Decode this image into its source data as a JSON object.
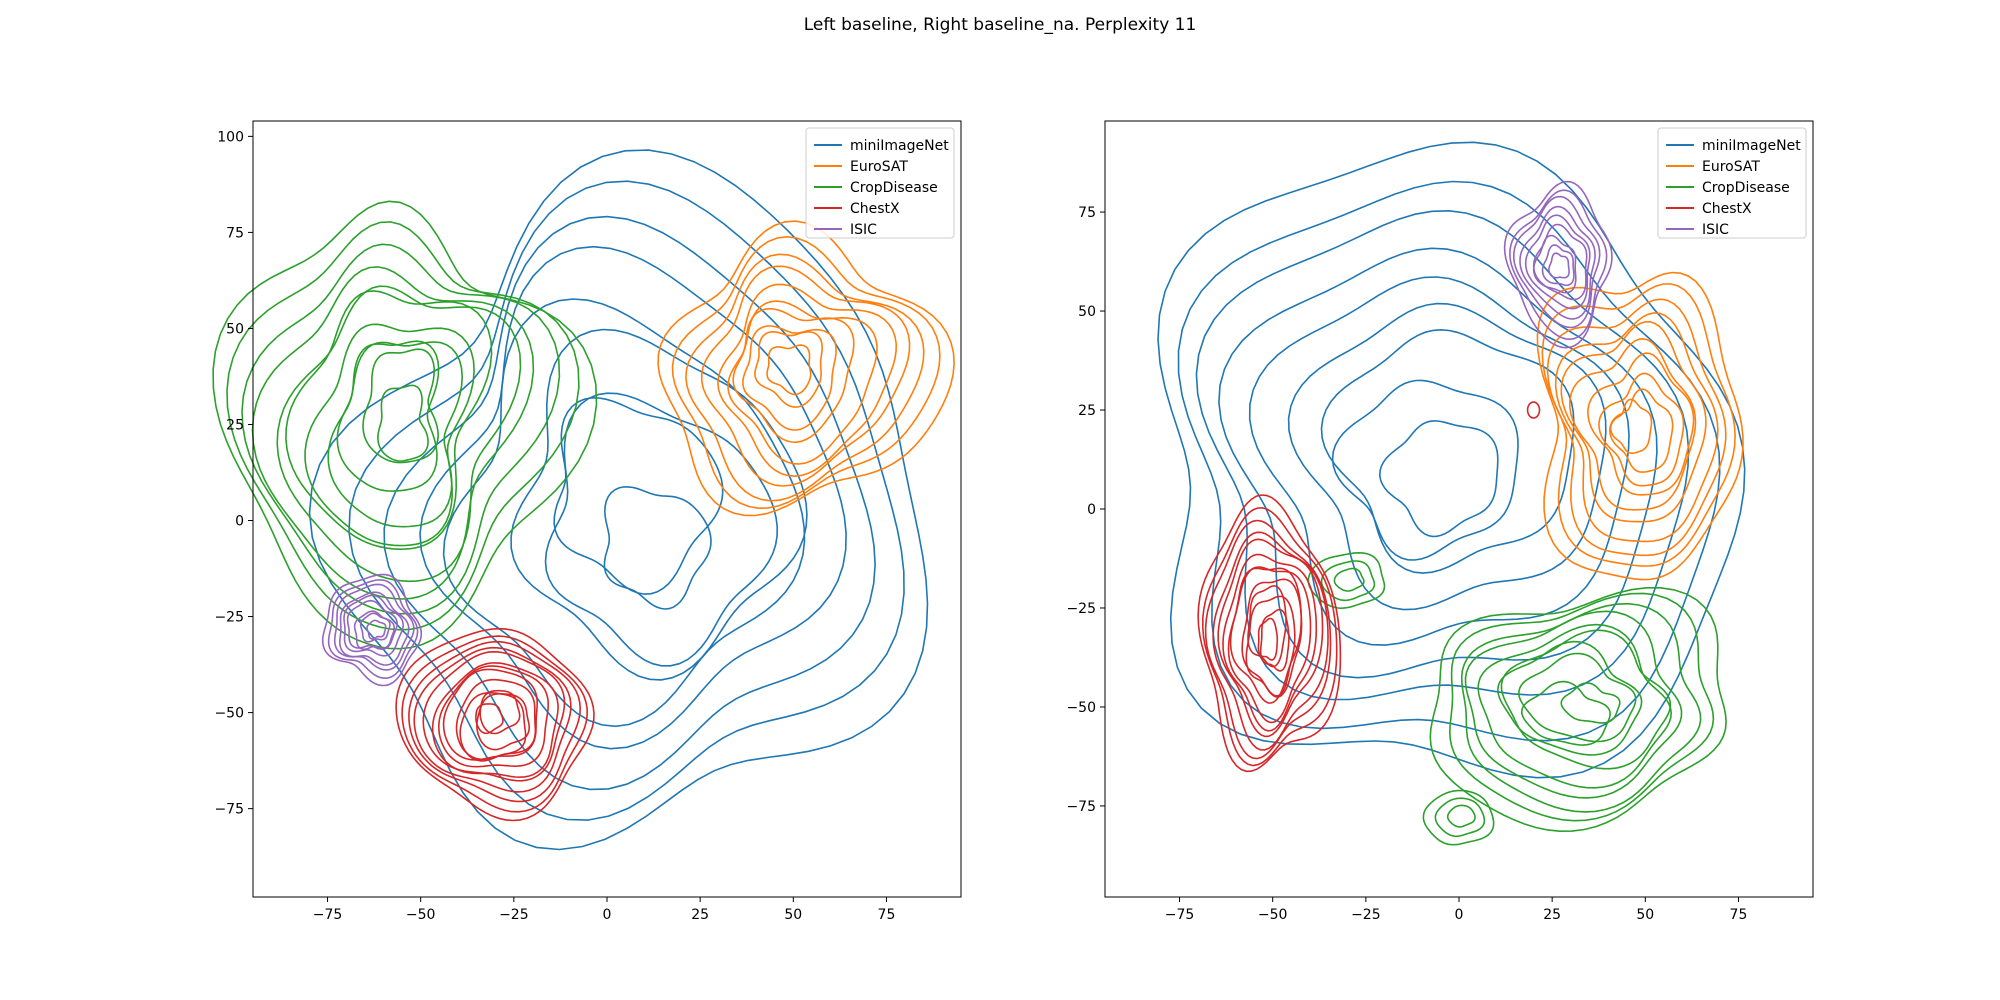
{
  "figure": {
    "title": "Left baseline, Right baseline_na. Perplexity 11"
  },
  "colors": {
    "miniImageNet": "#1f77b4",
    "EuroSAT": "#ff7f0e",
    "CropDisease": "#2ca02c",
    "ChestX": "#d62728",
    "ISIC": "#9467bd"
  },
  "chart_data": [
    {
      "type": "contour",
      "xlabel": "",
      "ylabel": "",
      "xlim": [
        -95,
        95
      ],
      "ylim": [
        -98,
        104
      ],
      "xticks": [
        -75,
        -50,
        -25,
        0,
        25,
        50,
        75
      ],
      "yticks": [
        -75,
        -50,
        -25,
        0,
        25,
        50,
        75,
        100
      ],
      "grid": false,
      "legend_position": "top-right",
      "legend": [
        "miniImageNet",
        "EuroSAT",
        "CropDisease",
        "ChestX",
        "ISIC"
      ],
      "series": [
        {
          "name": "miniImageNet",
          "clusters": [
            {
              "cx": 8,
              "cy": 2,
              "rx": 78,
              "ry": 82,
              "levels": 9,
              "wobble": 0.08,
              "seed": 1
            }
          ]
        },
        {
          "name": "EuroSAT",
          "clusters": [
            {
              "cx": 52,
              "cy": 38,
              "rx": 36,
              "ry": 35,
              "levels": 10,
              "wobble": 0.1,
              "seed": 2
            }
          ]
        },
        {
          "name": "CropDisease",
          "clusters": [
            {
              "cx": -57,
              "cy": 25,
              "rx": 42,
              "ry": 58,
              "levels": 11,
              "wobble": 0.1,
              "seed": 3
            }
          ]
        },
        {
          "name": "ChestX",
          "clusters": [
            {
              "cx": -30,
              "cy": -52,
              "rx": 25,
              "ry": 24,
              "levels": 13,
              "wobble": 0.06,
              "seed": 4
            }
          ]
        },
        {
          "name": "ISIC",
          "clusters": [
            {
              "cx": -63,
              "cy": -28,
              "rx": 13,
              "ry": 13,
              "levels": 9,
              "wobble": 0.08,
              "seed": 5
            }
          ]
        }
      ]
    },
    {
      "type": "contour",
      "xlabel": "",
      "ylabel": "",
      "xlim": [
        -95,
        95
      ],
      "ylim": [
        -98,
        98
      ],
      "xticks": [
        -75,
        -50,
        -25,
        0,
        25,
        50,
        75
      ],
      "yticks": [
        -75,
        -50,
        -25,
        0,
        25,
        50,
        75
      ],
      "grid": false,
      "legend_position": "top-right",
      "legend": [
        "miniImageNet",
        "EuroSAT",
        "CropDisease",
        "ChestX",
        "ISIC"
      ],
      "series": [
        {
          "name": "miniImageNet",
          "clusters": [
            {
              "cx": -5,
              "cy": 10,
              "rx": 80,
              "ry": 78,
              "levels": 9,
              "wobble": 0.08,
              "seed": 11
            }
          ]
        },
        {
          "name": "EuroSAT",
          "clusters": [
            {
              "cx": 48,
              "cy": 21,
              "rx": 28,
              "ry": 38,
              "levels": 10,
              "wobble": 0.1,
              "seed": 12
            }
          ]
        },
        {
          "name": "CropDisease",
          "clusters": [
            {
              "cx": 32,
              "cy": -50,
              "rx": 42,
              "ry": 28,
              "levels": 10,
              "wobble": 0.1,
              "seed": 13
            },
            {
              "cx": -30,
              "cy": -18,
              "rx": 10,
              "ry": 7,
              "levels": 3,
              "wobble": 0.05,
              "seed": 14
            },
            {
              "cx": 0,
              "cy": -78,
              "rx": 9,
              "ry": 7,
              "levels": 3,
              "wobble": 0.05,
              "seed": 15
            }
          ]
        },
        {
          "name": "ChestX",
          "clusters": [
            {
              "cx": -51,
              "cy": -32,
              "rx": 18,
              "ry": 33,
              "levels": 13,
              "wobble": 0.06,
              "seed": 16
            },
            {
              "cx": 20,
              "cy": 25,
              "rx": 1.6,
              "ry": 2,
              "levels": 1,
              "wobble": 0,
              "seed": 17
            }
          ]
        },
        {
          "name": "ISIC",
          "clusters": [
            {
              "cx": 27,
              "cy": 62,
              "rx": 14,
              "ry": 18,
              "levels": 9,
              "wobble": 0.08,
              "seed": 18
            }
          ]
        }
      ]
    }
  ]
}
